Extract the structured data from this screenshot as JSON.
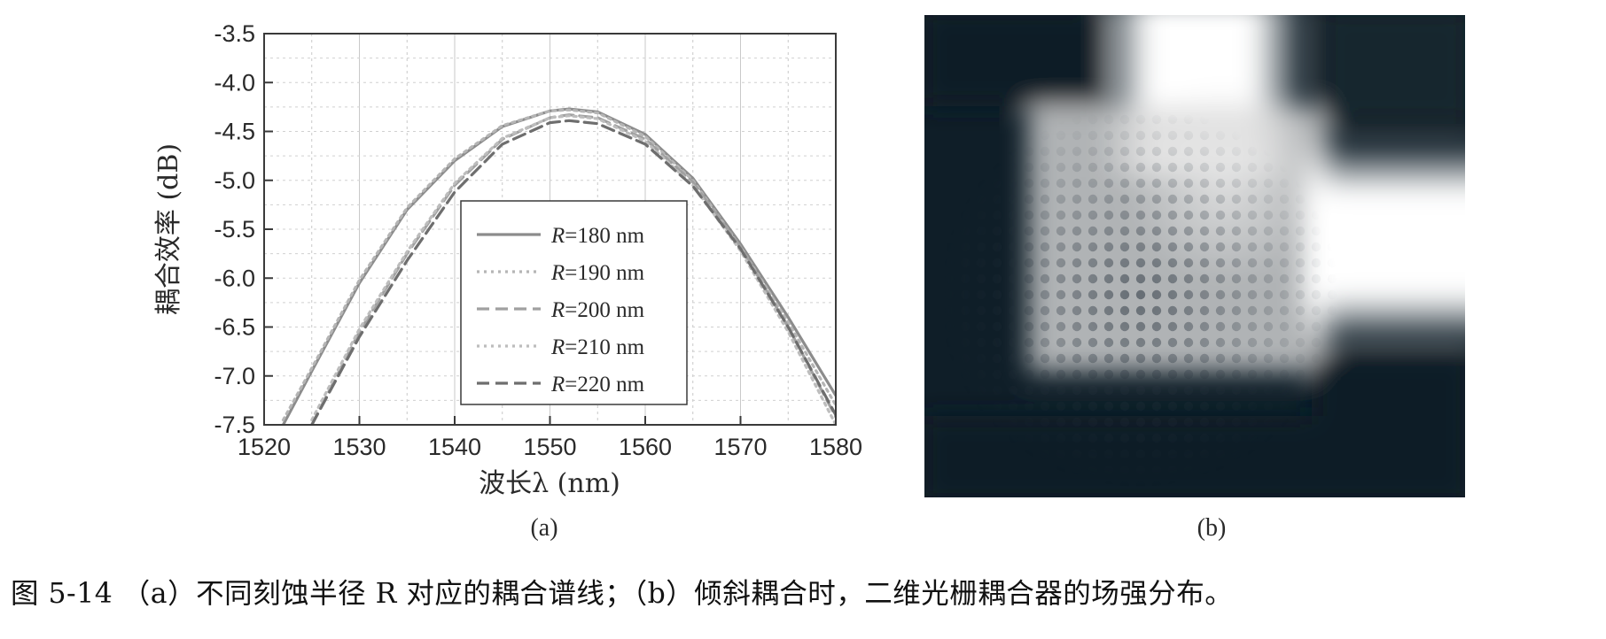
{
  "chart_data": [
    {
      "type": "line",
      "panel_label": "(a)",
      "xlabel": "波长λ (nm)",
      "ylabel": "耦合效率 (dB)",
      "xlim": [
        1520,
        1580
      ],
      "ylim": [
        -7.5,
        -3.5
      ],
      "x_ticks": [
        "1520",
        "1530",
        "1540",
        "1550",
        "1560",
        "1570",
        "1580"
      ],
      "y_ticks": [
        "-3.5",
        "-4.0",
        "-4.5",
        "-5.0",
        "-5.5",
        "-6.0",
        "-6.5",
        "-7.0",
        "-7.5"
      ],
      "grid": true,
      "legend_position": "center",
      "series": [
        {
          "name": "R=180 nm",
          "color": "#8c8c8c",
          "style": "solid",
          "x": [
            1522,
            1525,
            1530,
            1535,
            1540,
            1545,
            1550,
            1552,
            1555,
            1560,
            1565,
            1570,
            1575,
            1580
          ],
          "y": [
            -7.5,
            -6.95,
            -6.05,
            -5.3,
            -4.8,
            -4.45,
            -4.29,
            -4.27,
            -4.3,
            -4.53,
            -4.98,
            -5.65,
            -6.4,
            -7.2
          ]
        },
        {
          "name": "R=190 nm",
          "color": "#b5b5b5",
          "style": "dotted",
          "x": [
            1522,
            1525,
            1530,
            1535,
            1540,
            1545,
            1550,
            1552,
            1555,
            1560,
            1565,
            1570,
            1575,
            1580
          ],
          "y": [
            -7.45,
            -6.92,
            -6.02,
            -5.28,
            -4.78,
            -4.44,
            -4.29,
            -4.28,
            -4.31,
            -4.55,
            -5.0,
            -5.68,
            -6.45,
            -7.3
          ]
        },
        {
          "name": "R=200 nm",
          "color": "#a0a0a0",
          "style": "dashed",
          "x": [
            1525,
            1530,
            1535,
            1540,
            1545,
            1550,
            1552,
            1555,
            1560,
            1565,
            1570,
            1575,
            1580
          ],
          "y": [
            -7.5,
            -6.55,
            -5.75,
            -5.05,
            -4.58,
            -4.36,
            -4.33,
            -4.36,
            -4.58,
            -5.02,
            -5.68,
            -6.5,
            -7.42
          ]
        },
        {
          "name": "R=210 nm",
          "color": "#bdbdbd",
          "style": "dotted",
          "x": [
            1525,
            1530,
            1535,
            1540,
            1545,
            1550,
            1552,
            1555,
            1560,
            1565,
            1570,
            1575,
            1580
          ],
          "y": [
            -7.45,
            -6.52,
            -5.73,
            -5.03,
            -4.57,
            -4.36,
            -4.34,
            -4.37,
            -4.6,
            -5.05,
            -5.72,
            -6.55,
            -7.5
          ]
        },
        {
          "name": "R=220 nm",
          "color": "#6e6e6e",
          "style": "dashed",
          "x": [
            1525,
            1530,
            1535,
            1540,
            1545,
            1550,
            1552,
            1555,
            1560,
            1565,
            1570,
            1575,
            1580
          ],
          "y": [
            -7.5,
            -6.6,
            -5.82,
            -5.12,
            -4.63,
            -4.41,
            -4.39,
            -4.42,
            -4.63,
            -5.06,
            -5.7,
            -6.5,
            -7.4
          ]
        }
      ]
    },
    {
      "type": "heatmap",
      "panel_label": "(b)"
    }
  ],
  "caption": "图 5-14 （a）不同刻蚀半径 R 对应的耦合谱线；（b）倾斜耦合时，二维光栅耦合器的场强分布。"
}
